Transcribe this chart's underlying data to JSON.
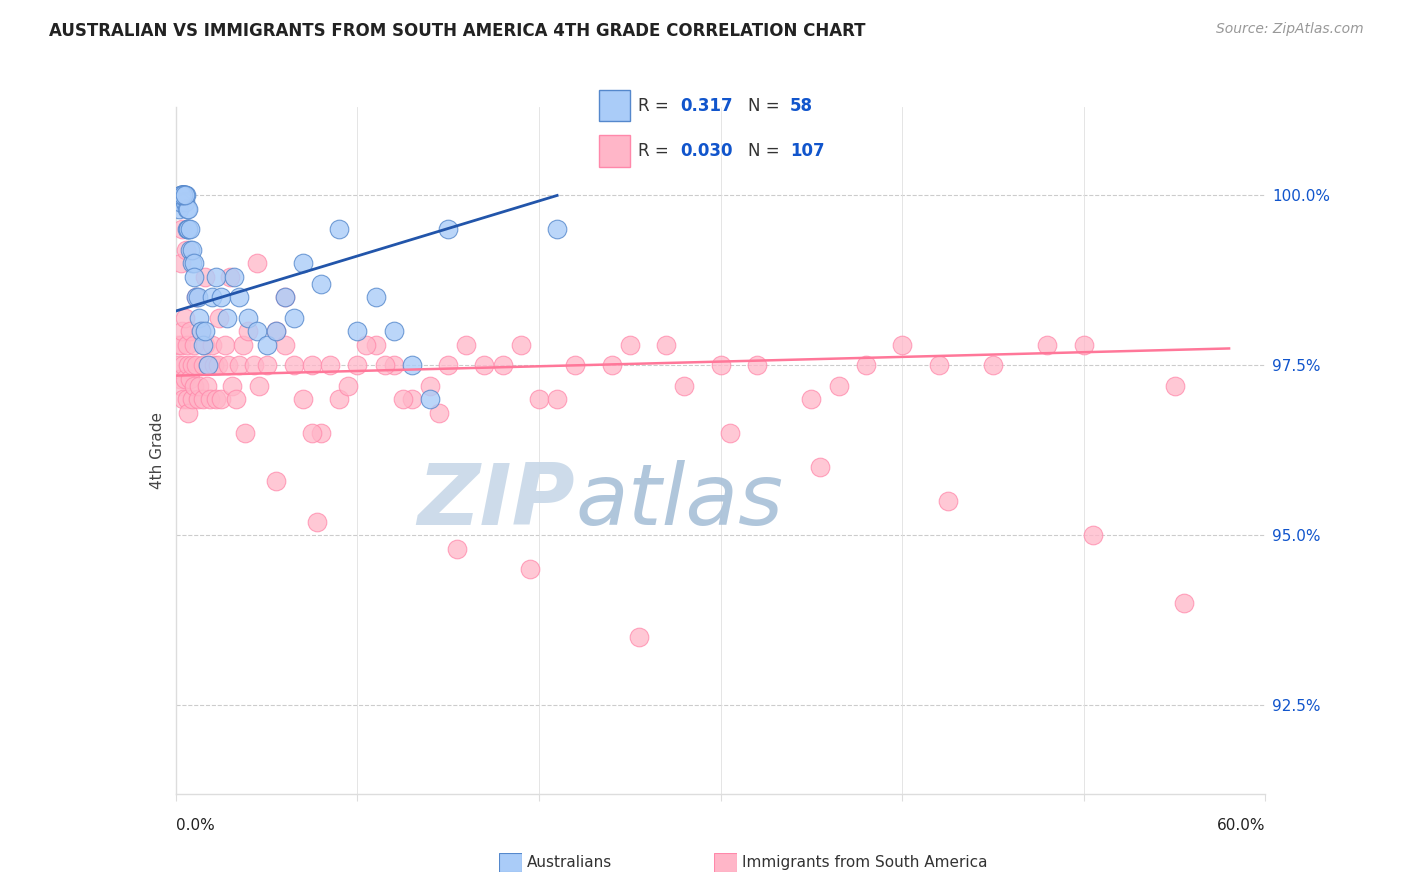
{
  "title": "AUSTRALIAN VS IMMIGRANTS FROM SOUTH AMERICA 4TH GRADE CORRELATION CHART",
  "source": "Source: ZipAtlas.com",
  "ylabel": "4th Grade",
  "xlim": [
    0.0,
    60.0
  ],
  "ylim": [
    91.2,
    101.3
  ],
  "yticks": [
    92.5,
    95.0,
    97.5,
    100.0
  ],
  "ytick_labels": [
    "92.5%",
    "95.0%",
    "97.5%",
    "100.0%"
  ],
  "blue_R": 0.317,
  "blue_N": 58,
  "pink_R": 0.03,
  "pink_N": 107,
  "blue_color": "#AACCF8",
  "pink_color": "#FFB6C8",
  "blue_edge_color": "#5588CC",
  "pink_edge_color": "#FF88AA",
  "blue_line_color": "#2255AA",
  "pink_line_color": "#FF7799",
  "legend_text_color": "#1155CC",
  "grid_color": "#CCCCCC",
  "spine_color": "#DDDDDD",
  "blue_scatter_x": [
    0.2,
    0.25,
    0.3,
    0.3,
    0.35,
    0.35,
    0.4,
    0.4,
    0.4,
    0.45,
    0.45,
    0.5,
    0.5,
    0.5,
    0.55,
    0.6,
    0.6,
    0.65,
    0.7,
    0.7,
    0.8,
    0.8,
    0.9,
    0.9,
    1.0,
    1.0,
    1.1,
    1.2,
    1.3,
    1.4,
    1.5,
    1.6,
    1.8,
    2.0,
    2.2,
    2.5,
    2.8,
    3.2,
    3.5,
    4.0,
    4.5,
    5.0,
    5.5,
    6.0,
    6.5,
    7.0,
    8.0,
    9.0,
    10.0,
    11.0,
    12.0,
    13.0,
    14.0,
    15.0,
    0.3,
    0.4,
    0.5,
    21.0
  ],
  "blue_scatter_y": [
    99.8,
    99.9,
    100.0,
    100.0,
    100.0,
    100.0,
    100.0,
    100.0,
    100.0,
    100.0,
    100.0,
    100.0,
    100.0,
    99.9,
    100.0,
    99.5,
    99.8,
    99.5,
    99.5,
    99.8,
    99.2,
    99.5,
    99.0,
    99.2,
    99.0,
    98.8,
    98.5,
    98.5,
    98.2,
    98.0,
    97.8,
    98.0,
    97.5,
    98.5,
    98.8,
    98.5,
    98.2,
    98.8,
    98.5,
    98.2,
    98.0,
    97.8,
    98.0,
    98.5,
    98.2,
    99.0,
    98.7,
    99.5,
    98.0,
    98.5,
    98.0,
    97.5,
    97.0,
    99.5,
    100.0,
    100.0,
    100.0,
    99.5
  ],
  "pink_scatter_x": [
    0.15,
    0.2,
    0.25,
    0.3,
    0.3,
    0.35,
    0.4,
    0.4,
    0.5,
    0.5,
    0.6,
    0.6,
    0.7,
    0.7,
    0.8,
    0.8,
    0.9,
    0.9,
    1.0,
    1.0,
    1.1,
    1.2,
    1.3,
    1.4,
    1.5,
    1.5,
    1.6,
    1.7,
    1.8,
    1.9,
    2.0,
    2.1,
    2.2,
    2.3,
    2.5,
    2.7,
    2.9,
    3.1,
    3.3,
    3.5,
    3.7,
    4.0,
    4.3,
    4.6,
    5.0,
    5.5,
    6.0,
    6.5,
    7.0,
    7.5,
    8.0,
    9.0,
    10.0,
    11.0,
    12.0,
    13.0,
    14.0,
    15.0,
    16.0,
    18.0,
    20.0,
    22.0,
    25.0,
    28.0,
    30.0,
    35.0,
    38.0,
    40.0,
    45.0,
    50.0,
    55.0,
    3.0,
    4.5,
    6.0,
    8.5,
    10.5,
    12.5,
    7.5,
    9.5,
    11.5,
    14.5,
    17.0,
    19.0,
    21.0,
    24.0,
    27.0,
    32.0,
    36.5,
    42.0,
    48.0,
    0.3,
    1.1,
    1.6,
    2.4,
    3.8,
    5.5,
    7.8,
    15.5,
    19.5,
    25.5,
    30.5,
    35.5,
    42.5,
    50.5,
    55.5,
    0.35,
    0.55
  ],
  "pink_scatter_y": [
    97.8,
    97.5,
    97.3,
    97.8,
    97.2,
    98.0,
    97.0,
    97.5,
    97.3,
    98.2,
    97.8,
    97.0,
    97.5,
    96.8,
    97.3,
    98.0,
    97.5,
    97.0,
    97.8,
    97.2,
    97.5,
    97.0,
    97.2,
    98.0,
    97.5,
    97.0,
    97.8,
    97.2,
    97.5,
    97.0,
    97.8,
    97.5,
    97.0,
    97.5,
    97.0,
    97.8,
    97.5,
    97.2,
    97.0,
    97.5,
    97.8,
    98.0,
    97.5,
    97.2,
    97.5,
    98.0,
    97.8,
    97.5,
    97.0,
    97.5,
    96.5,
    97.0,
    97.5,
    97.8,
    97.5,
    97.0,
    97.2,
    97.5,
    97.8,
    97.5,
    97.0,
    97.5,
    97.8,
    97.2,
    97.5,
    97.0,
    97.5,
    97.8,
    97.5,
    97.8,
    97.2,
    98.8,
    99.0,
    98.5,
    97.5,
    97.8,
    97.0,
    96.5,
    97.2,
    97.5,
    96.8,
    97.5,
    97.8,
    97.0,
    97.5,
    97.8,
    97.5,
    97.2,
    97.5,
    97.8,
    99.0,
    98.5,
    98.8,
    98.2,
    96.5,
    95.8,
    95.2,
    94.8,
    94.5,
    93.5,
    96.5,
    96.0,
    95.5,
    95.0,
    94.0,
    99.5,
    99.2
  ],
  "blue_line_x0": 0.0,
  "blue_line_x1": 21.0,
  "blue_line_y0": 98.3,
  "blue_line_y1": 100.0,
  "pink_line_x0": 0.0,
  "pink_line_x1": 58.0,
  "pink_line_y0": 97.35,
  "pink_line_y1": 97.75,
  "legend_label_blue": "Australians",
  "legend_label_pink": "Immigrants from South America",
  "watermark_zip": "ZIP",
  "watermark_atlas": "atlas",
  "zip_color": "#C8D8E8",
  "atlas_color": "#A8C0D8"
}
